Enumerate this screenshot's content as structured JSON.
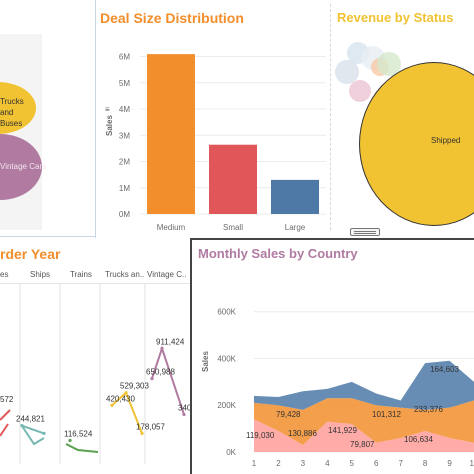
{
  "panels": {
    "bubble_products": {
      "labels": [
        "Trucks and\nBuses",
        "Vintage Cars"
      ],
      "colors": {
        "trucks": "#f1c232",
        "vintage": "#b07aa1"
      }
    },
    "deal_size": {
      "title": "Deal Size Distribution",
      "title_color": "#f28e2b"
    },
    "revenue_status": {
      "title": "Revenue by Status",
      "title_color": "#f1c232",
      "shipped_label": "Shipped"
    },
    "order_year": {
      "title_fragment": "rder Year",
      "title_color": "#f28e2b",
      "columns": [
        "es",
        "Ships",
        "Trains",
        "Trucks an..",
        "Vintage C.."
      ]
    },
    "monthly_country": {
      "title": "Monthly Sales by Country",
      "title_color": "#b07aa1",
      "ylabel": "Sales"
    },
    "toolbar": {
      "icon": "drag-handle-icon"
    }
  },
  "chart_data": [
    {
      "type": "bar",
      "title": "Deal Size Distribution",
      "ylabel": "Sales",
      "ylim": [
        0,
        6.4
      ],
      "y_ticks": [
        "0M",
        "1M",
        "2M",
        "3M",
        "4M",
        "5M",
        "6M"
      ],
      "categories": [
        "Medium",
        "Small",
        "Large"
      ],
      "values": [
        6.09,
        2.64,
        1.3
      ],
      "colors": [
        "#f28e2b",
        "#e15759",
        "#4e79a7"
      ],
      "grid": true
    },
    {
      "type": "line",
      "title": "rder Year",
      "panels": [
        {
          "name": "es",
          "values_visible": [
            "572"
          ],
          "color": "#e15759"
        },
        {
          "name": "Ships",
          "points": [
            244821,
            178006
          ],
          "labels": [
            "244,821",
            ""
          ],
          "color": "#76b7b2"
        },
        {
          "name": "Trains",
          "points": [
            116524
          ],
          "labels": [
            "116,524"
          ],
          "color": "#59a14f"
        },
        {
          "name": "Trucks an..",
          "points": [
            420430,
            529303,
            178057
          ],
          "labels": [
            "420,430",
            "529,303",
            "178,057"
          ],
          "color": "#f1c232"
        },
        {
          "name": "Vintage C..",
          "points": [
            650988,
            911424,
            340739
          ],
          "labels": [
            "650,988",
            "911,424",
            "340,739"
          ],
          "color": "#b07aa1"
        }
      ]
    },
    {
      "type": "area",
      "title": "Monthly Sales by Country",
      "ylabel": "Sales",
      "ylim": [
        0,
        650000
      ],
      "y_ticks": [
        "0K",
        "200K",
        "400K",
        "600K"
      ],
      "x": [
        1,
        2,
        3,
        4,
        5,
        6,
        7,
        8,
        9,
        10
      ],
      "series": [
        {
          "values": [
            140000,
            90000,
            30000,
            130000,
            120000,
            40000,
            60000,
            90000,
            60000,
            40000
          ],
          "color": "#ff9d9a"
        },
        {
          "values": [
            70000,
            110000,
            150000,
            100000,
            110000,
            160000,
            130000,
            90000,
            130000,
            180000
          ],
          "color": "#f28e2b"
        },
        {
          "values": [
            30000,
            35000,
            80000,
            40000,
            70000,
            50000,
            30000,
            200000,
            200000,
            80000
          ],
          "color": "#4e79a7"
        }
      ],
      "data_labels": [
        "119,030",
        "79,428",
        "130,886",
        "141,929",
        "79,807",
        "101,312",
        "106,634",
        "233,376",
        "164,603",
        "0K"
      ]
    }
  ]
}
